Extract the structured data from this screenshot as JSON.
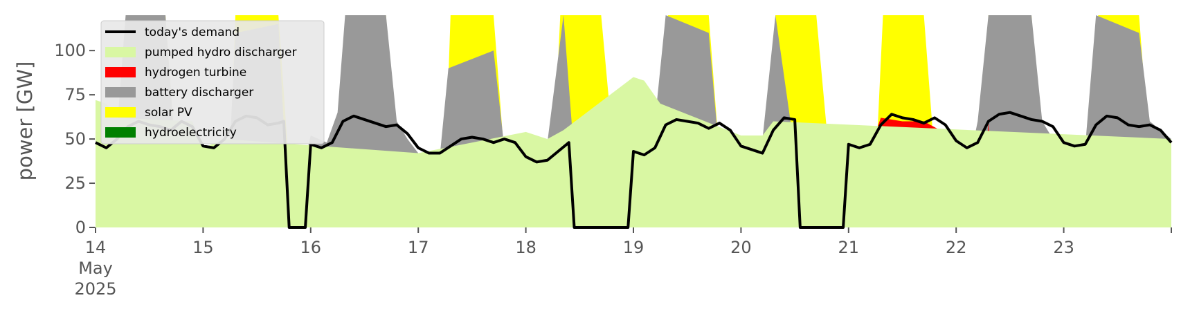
{
  "chart_data": {
    "type": "area",
    "title": "",
    "ylabel": "power [GW]",
    "xlabel": "",
    "ylim": [
      0,
      120
    ],
    "xlim_days": [
      "2025-05-14",
      "2025-05-24"
    ],
    "yticks": [
      0,
      25,
      50,
      75,
      100
    ],
    "xticks": [
      {
        "day": 14,
        "label": "14",
        "label2": "May",
        "label3": "2025"
      },
      {
        "day": 15,
        "label": "15"
      },
      {
        "day": 16,
        "label": "16"
      },
      {
        "day": 17,
        "label": "17"
      },
      {
        "day": 18,
        "label": "18"
      },
      {
        "day": 19,
        "label": "19"
      },
      {
        "day": 20,
        "label": "20"
      },
      {
        "day": 21,
        "label": "21"
      },
      {
        "day": 22,
        "label": "22"
      },
      {
        "day": 23,
        "label": "23"
      }
    ],
    "grid": false,
    "legend_position": "top-left",
    "legend": [
      {
        "name": "today's demand",
        "color": "#000000",
        "kind": "line"
      },
      {
        "name": "pumped hydro discharger",
        "color": "#d9f7a3",
        "kind": "patch"
      },
      {
        "name": "hydrogen turbine",
        "color": "#ff0000",
        "kind": "patch"
      },
      {
        "name": "battery discharger",
        "color": "#999999",
        "kind": "patch"
      },
      {
        "name": "solar PV",
        "color": "#ffff00",
        "kind": "patch"
      },
      {
        "name": "hydroelectricity",
        "color": "#008000",
        "kind": "patch"
      }
    ],
    "series": [
      {
        "name": "hydroelectricity",
        "color": "#008000",
        "points": [
          [
            14.0,
            1.5
          ],
          [
            14.5,
            1.8
          ],
          [
            15.0,
            1.6
          ],
          [
            15.5,
            1.4
          ],
          [
            16.0,
            1.5
          ],
          [
            16.5,
            1.8
          ],
          [
            17.0,
            1.5
          ],
          [
            17.5,
            1.4
          ],
          [
            18.0,
            1.6
          ],
          [
            18.5,
            1.5
          ],
          [
            19.0,
            1.4
          ],
          [
            19.5,
            1.6
          ],
          [
            20.0,
            1.8
          ],
          [
            20.5,
            1.5
          ],
          [
            21.0,
            1.6
          ],
          [
            21.5,
            1.7
          ],
          [
            22.0,
            1.5
          ],
          [
            22.5,
            1.8
          ],
          [
            23.0,
            2.0
          ],
          [
            23.5,
            1.9
          ],
          [
            24.0,
            1.8
          ]
        ]
      },
      {
        "name": "solar PV",
        "color": "#ffff00",
        "points": [
          [
            14.0,
            0
          ],
          [
            14.2,
            0
          ],
          [
            14.25,
            30
          ],
          [
            14.3,
            120
          ],
          [
            14.65,
            120
          ],
          [
            14.72,
            60
          ],
          [
            14.8,
            0
          ],
          [
            15.2,
            0
          ],
          [
            15.25,
            30
          ],
          [
            15.3,
            120
          ],
          [
            15.7,
            120
          ],
          [
            15.78,
            50
          ],
          [
            15.85,
            0
          ],
          [
            16.2,
            0
          ],
          [
            16.25,
            30
          ],
          [
            16.33,
            120
          ],
          [
            16.7,
            120
          ],
          [
            16.78,
            50
          ],
          [
            16.85,
            0
          ],
          [
            17.2,
            0
          ],
          [
            17.25,
            30
          ],
          [
            17.3,
            120
          ],
          [
            17.7,
            120
          ],
          [
            17.8,
            40
          ],
          [
            17.88,
            0
          ],
          [
            18.2,
            0
          ],
          [
            18.25,
            30
          ],
          [
            18.32,
            120
          ],
          [
            18.7,
            120
          ],
          [
            18.82,
            40
          ],
          [
            18.9,
            0
          ],
          [
            19.2,
            0
          ],
          [
            19.25,
            30
          ],
          [
            19.32,
            120
          ],
          [
            19.7,
            120
          ],
          [
            19.8,
            40
          ],
          [
            19.88,
            0
          ],
          [
            20.2,
            0
          ],
          [
            20.25,
            30
          ],
          [
            20.32,
            120
          ],
          [
            20.7,
            120
          ],
          [
            20.82,
            40
          ],
          [
            20.9,
            0
          ],
          [
            21.2,
            0
          ],
          [
            21.25,
            30
          ],
          [
            21.32,
            120
          ],
          [
            21.7,
            120
          ],
          [
            21.8,
            40
          ],
          [
            21.88,
            0
          ],
          [
            22.2,
            0
          ],
          [
            22.25,
            30
          ],
          [
            22.3,
            120
          ],
          [
            22.7,
            120
          ],
          [
            22.8,
            40
          ],
          [
            22.88,
            0
          ],
          [
            23.2,
            0
          ],
          [
            23.25,
            30
          ],
          [
            23.32,
            120
          ],
          [
            23.7,
            120
          ],
          [
            23.8,
            40
          ],
          [
            23.88,
            0
          ],
          [
            24.0,
            0
          ]
        ]
      },
      {
        "name": "battery discharger",
        "color": "#999999",
        "points": [
          [
            14.0,
            62
          ],
          [
            14.1,
            58
          ],
          [
            14.2,
            56
          ],
          [
            14.28,
            120
          ],
          [
            14.65,
            120
          ],
          [
            14.72,
            60
          ],
          [
            14.8,
            10
          ],
          [
            15.0,
            0
          ],
          [
            15.22,
            10
          ],
          [
            15.3,
            110
          ],
          [
            15.7,
            115
          ],
          [
            15.8,
            0
          ],
          [
            16.0,
            52
          ],
          [
            16.15,
            48
          ],
          [
            16.25,
            65
          ],
          [
            16.32,
            120
          ],
          [
            16.7,
            120
          ],
          [
            16.8,
            60
          ],
          [
            16.9,
            50
          ],
          [
            17.0,
            42
          ],
          [
            17.2,
            40
          ],
          [
            17.28,
            90
          ],
          [
            17.7,
            100
          ],
          [
            17.8,
            45
          ],
          [
            17.9,
            10
          ],
          [
            18.0,
            45
          ],
          [
            18.2,
            48
          ],
          [
            18.35,
            120
          ],
          [
            18.5,
            0
          ],
          [
            19.0,
            80
          ],
          [
            19.2,
            60
          ],
          [
            19.3,
            120
          ],
          [
            19.7,
            110
          ],
          [
            19.8,
            40
          ],
          [
            19.9,
            10
          ],
          [
            20.0,
            50
          ],
          [
            20.2,
            50
          ],
          [
            20.32,
            120
          ],
          [
            20.6,
            0
          ],
          [
            20.95,
            0
          ],
          [
            21.0,
            42
          ],
          [
            21.1,
            38
          ],
          [
            21.2,
            30
          ],
          [
            21.3,
            12
          ],
          [
            21.5,
            10
          ],
          [
            21.7,
            15
          ],
          [
            21.8,
            25
          ],
          [
            21.9,
            35
          ],
          [
            22.0,
            40
          ],
          [
            22.1,
            30
          ],
          [
            22.2,
            60
          ],
          [
            22.3,
            120
          ],
          [
            22.7,
            120
          ],
          [
            22.8,
            60
          ],
          [
            22.9,
            50
          ],
          [
            23.0,
            45
          ],
          [
            23.2,
            46
          ],
          [
            23.3,
            120
          ],
          [
            23.7,
            110
          ],
          [
            23.8,
            60
          ],
          [
            23.9,
            55
          ],
          [
            24.0,
            50
          ]
        ]
      },
      {
        "name": "hydrogen turbine",
        "color": "#ff0000",
        "points": [
          [
            21.0,
            0
          ],
          [
            21.05,
            40
          ],
          [
            21.2,
            45
          ],
          [
            21.3,
            62
          ],
          [
            21.5,
            60
          ],
          [
            21.7,
            60
          ],
          [
            21.85,
            55
          ],
          [
            22.0,
            45
          ],
          [
            22.1,
            0
          ],
          [
            22.25,
            0
          ],
          [
            22.3,
            60
          ],
          [
            22.35,
            0
          ],
          [
            24.0,
            0
          ]
        ]
      },
      {
        "name": "pumped hydro discharger",
        "color": "#d9f7a3",
        "points": [
          [
            14.0,
            72
          ],
          [
            14.1,
            70
          ],
          [
            14.2,
            62
          ],
          [
            14.9,
            60
          ],
          [
            15.0,
            45
          ],
          [
            15.2,
            50
          ],
          [
            17.0,
            42
          ],
          [
            18.0,
            54
          ],
          [
            18.2,
            50
          ],
          [
            18.35,
            55
          ],
          [
            19.0,
            85
          ],
          [
            19.1,
            83
          ],
          [
            19.25,
            70
          ],
          [
            20.0,
            52
          ],
          [
            20.2,
            52
          ],
          [
            20.3,
            60
          ],
          [
            24.0,
            50
          ]
        ]
      },
      {
        "name": "today's demand",
        "color": "#000000",
        "line": true,
        "points": [
          [
            14.0,
            48
          ],
          [
            14.1,
            45
          ],
          [
            14.2,
            50
          ],
          [
            14.3,
            57
          ],
          [
            14.4,
            60
          ],
          [
            14.5,
            58
          ],
          [
            14.6,
            57
          ],
          [
            14.7,
            55
          ],
          [
            14.8,
            60
          ],
          [
            14.9,
            57
          ],
          [
            15.0,
            46
          ],
          [
            15.1,
            45
          ],
          [
            15.2,
            50
          ],
          [
            15.3,
            60
          ],
          [
            15.4,
            63
          ],
          [
            15.5,
            62
          ],
          [
            15.6,
            58
          ],
          [
            15.7,
            59
          ],
          [
            15.75,
            60
          ],
          [
            15.8,
            0
          ],
          [
            15.95,
            0
          ],
          [
            16.0,
            47
          ],
          [
            16.1,
            45
          ],
          [
            16.2,
            48
          ],
          [
            16.3,
            60
          ],
          [
            16.4,
            63
          ],
          [
            16.5,
            61
          ],
          [
            16.6,
            59
          ],
          [
            16.7,
            57
          ],
          [
            16.8,
            58
          ],
          [
            16.9,
            53
          ],
          [
            17.0,
            45
          ],
          [
            17.1,
            42
          ],
          [
            17.2,
            42
          ],
          [
            17.3,
            46
          ],
          [
            17.4,
            50
          ],
          [
            17.5,
            51
          ],
          [
            17.6,
            50
          ],
          [
            17.7,
            48
          ],
          [
            17.8,
            50
          ],
          [
            17.9,
            48
          ],
          [
            18.0,
            40
          ],
          [
            18.1,
            37
          ],
          [
            18.2,
            38
          ],
          [
            18.3,
            43
          ],
          [
            18.4,
            48
          ],
          [
            18.45,
            0
          ],
          [
            18.95,
            0
          ],
          [
            19.0,
            43
          ],
          [
            19.1,
            41
          ],
          [
            19.2,
            45
          ],
          [
            19.3,
            58
          ],
          [
            19.4,
            61
          ],
          [
            19.5,
            60
          ],
          [
            19.6,
            59
          ],
          [
            19.7,
            56
          ],
          [
            19.8,
            59
          ],
          [
            19.9,
            55
          ],
          [
            20.0,
            46
          ],
          [
            20.1,
            44
          ],
          [
            20.2,
            42
          ],
          [
            20.3,
            55
          ],
          [
            20.4,
            62
          ],
          [
            20.5,
            61
          ],
          [
            20.55,
            0
          ],
          [
            20.95,
            0
          ],
          [
            21.0,
            47
          ],
          [
            21.1,
            45
          ],
          [
            21.2,
            47
          ],
          [
            21.3,
            58
          ],
          [
            21.4,
            64
          ],
          [
            21.5,
            62
          ],
          [
            21.6,
            61
          ],
          [
            21.7,
            59
          ],
          [
            21.8,
            62
          ],
          [
            21.9,
            58
          ],
          [
            22.0,
            49
          ],
          [
            22.1,
            45
          ],
          [
            22.2,
            48
          ],
          [
            22.3,
            60
          ],
          [
            22.4,
            64
          ],
          [
            22.5,
            65
          ],
          [
            22.6,
            63
          ],
          [
            22.7,
            61
          ],
          [
            22.8,
            60
          ],
          [
            22.9,
            57
          ],
          [
            23.0,
            48
          ],
          [
            23.1,
            46
          ],
          [
            23.2,
            47
          ],
          [
            23.3,
            58
          ],
          [
            23.4,
            63
          ],
          [
            23.5,
            62
          ],
          [
            23.6,
            58
          ],
          [
            23.7,
            57
          ],
          [
            23.8,
            58
          ],
          [
            23.9,
            55
          ],
          [
            24.0,
            48
          ]
        ]
      }
    ]
  }
}
